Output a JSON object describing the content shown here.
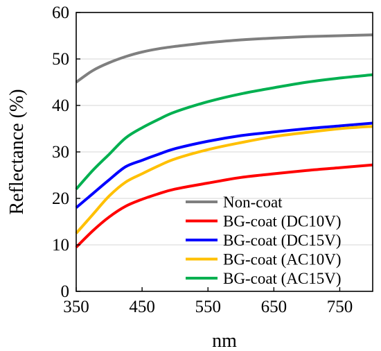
{
  "chart_data": {
    "type": "line",
    "xlabel": "nm",
    "ylabel": "Reflectance (%)",
    "xlim": [
      350,
      800
    ],
    "ylim": [
      0,
      60
    ],
    "xticks": [
      350,
      450,
      550,
      650,
      750
    ],
    "yticks": [
      0,
      10,
      20,
      30,
      40,
      50,
      60
    ],
    "grid": "horizontal",
    "legend_position": "bottom-right",
    "series": [
      {
        "name": "Non-coat",
        "color": "#7f7f7f",
        "x": [
          350,
          375,
          400,
          425,
          450,
          475,
          500,
          550,
          600,
          650,
          700,
          750,
          800
        ],
        "y": [
          45,
          47.5,
          49.2,
          50.5,
          51.5,
          52.2,
          52.7,
          53.5,
          54.1,
          54.5,
          54.8,
          55,
          55.2
        ]
      },
      {
        "name": "BG-coat (DC10V)",
        "color": "#ff0000",
        "x": [
          350,
          375,
          400,
          425,
          450,
          475,
          500,
          550,
          600,
          650,
          700,
          750,
          800
        ],
        "y": [
          9.5,
          13,
          16,
          18.3,
          19.8,
          21,
          22,
          23.3,
          24.5,
          25.3,
          26,
          26.6,
          27.2
        ]
      },
      {
        "name": "BG-coat (DC15V)",
        "color": "#0000ff",
        "x": [
          350,
          375,
          400,
          425,
          450,
          475,
          500,
          550,
          600,
          650,
          700,
          750,
          800
        ],
        "y": [
          18,
          21,
          24,
          26.8,
          28.2,
          29.5,
          30.7,
          32.3,
          33.5,
          34.3,
          35,
          35.6,
          36.2
        ]
      },
      {
        "name": "BG-coat (AC10V)",
        "color": "#ffc000",
        "x": [
          350,
          375,
          400,
          425,
          450,
          475,
          500,
          550,
          600,
          650,
          700,
          750,
          800
        ],
        "y": [
          12.5,
          16.5,
          20.5,
          23.5,
          25.3,
          27,
          28.5,
          30.5,
          32,
          33.3,
          34.2,
          35,
          35.5
        ]
      },
      {
        "name": "BG-coat (AC15V)",
        "color": "#00b050",
        "x": [
          350,
          375,
          400,
          425,
          450,
          475,
          500,
          550,
          600,
          650,
          700,
          750,
          800
        ],
        "y": [
          22,
          26,
          29.5,
          33,
          35.2,
          37,
          38.6,
          40.8,
          42.5,
          43.8,
          45,
          45.9,
          46.6
        ]
      }
    ]
  }
}
